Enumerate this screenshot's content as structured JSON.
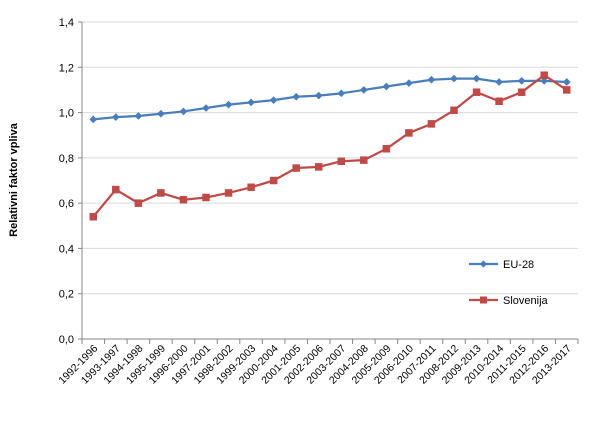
{
  "chart_data": {
    "type": "line",
    "ylabel": "Relativni faktor vpliva",
    "xlabel": "",
    "ylim": [
      0,
      1.4
    ],
    "y_ticks": [
      "0,0",
      "0,2",
      "0,4",
      "0,6",
      "0,8",
      "1,0",
      "1,2",
      "1,4"
    ],
    "y_tick_values": [
      0,
      0.2,
      0.4,
      0.6,
      0.8,
      1.0,
      1.2,
      1.4
    ],
    "grid": "horizontal",
    "legend_position": "right",
    "categories": [
      "1992-1996",
      "1993-1997",
      "1994-1998",
      "1995-1999",
      "1996-2000",
      "1997-2001",
      "1998-2002",
      "1999-2003",
      "2000-2004",
      "2001-2005",
      "2002-2006",
      "2003-2007",
      "2004-2008",
      "2005-2009",
      "2006-2010",
      "2007-2011",
      "2008-2012",
      "2009-2013",
      "2010-2014",
      "2011-2015",
      "2012-2016",
      "2013-2017"
    ],
    "series": [
      {
        "name": "EU-28",
        "color": "#4a7ebb",
        "marker": "diamond",
        "values": [
          0.97,
          0.98,
          0.985,
          0.995,
          1.005,
          1.02,
          1.035,
          1.045,
          1.055,
          1.07,
          1.075,
          1.085,
          1.1,
          1.115,
          1.13,
          1.145,
          1.15,
          1.15,
          1.135,
          1.14,
          1.14,
          1.135
        ]
      },
      {
        "name": "Slovenija",
        "color": "#be4b48",
        "marker": "square",
        "values": [
          0.54,
          0.66,
          0.6,
          0.645,
          0.615,
          0.625,
          0.645,
          0.67,
          0.7,
          0.755,
          0.76,
          0.785,
          0.79,
          0.84,
          0.91,
          0.95,
          1.01,
          1.09,
          1.05,
          1.09,
          1.165,
          1.1
        ]
      }
    ]
  }
}
